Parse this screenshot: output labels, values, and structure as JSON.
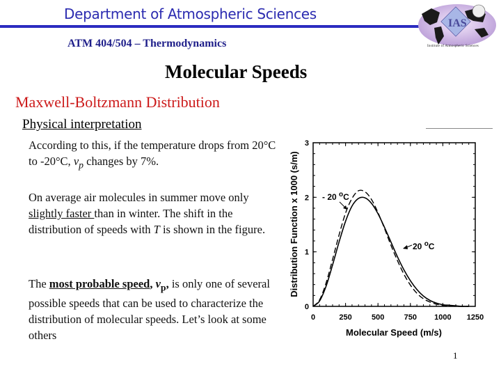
{
  "header": {
    "department": "Department of Atmospheric Sciences",
    "course": "ATM 404/504 – Thermodynamics",
    "logo": {
      "text": "IAS",
      "caption": "Institute of Atmospheric Sciences"
    }
  },
  "slide": {
    "title": "Molecular Speeds",
    "subtitle": "Maxwell-Boltzmann Distribution",
    "subheading": "Physical interpretation",
    "paragraph1": {
      "part1": "According to this, if the temperature drops from 20°C to -20°C, ",
      "var": "v",
      "sub": "p",
      "part2": " changes by 7%."
    },
    "paragraph2": {
      "part1": "On average air molecules in summer move only ",
      "underlined": "slightly faster ",
      "part2": "than in winter.  The shift in the distribution of speeds with ",
      "var": "T",
      "part3": " is shown in the figure."
    },
    "paragraph3": {
      "part1": "The ",
      "bold_underlined": "most probable speed",
      "bold_comma": ", ",
      "var": "v",
      "sub": "p",
      "bold_comma2": ",",
      "part2": " is only one of several possible speeds that can be used to characterize the distribution of molecular speeds.  Let’s look at some others"
    },
    "page_number": "1"
  },
  "chart_data": {
    "type": "line",
    "title": "",
    "xlabel": "Molecular Speed (m/s)",
    "ylabel": "Distribution Function x 1000 (s/m)",
    "xlim": [
      0,
      1250
    ],
    "ylim": [
      0,
      3
    ],
    "x_ticks": [
      "0",
      "250",
      "500",
      "750",
      "1000",
      "1250"
    ],
    "y_ticks": [
      "0",
      "1",
      "2",
      "3"
    ],
    "grid": false,
    "x": [
      0,
      50,
      100,
      150,
      200,
      250,
      300,
      350,
      400,
      450,
      500,
      550,
      600,
      650,
      700,
      750,
      800,
      850,
      900,
      950,
      1000,
      1050,
      1100,
      1150,
      1200
    ],
    "series": [
      {
        "name": "20 °C",
        "style": "solid",
        "values": [
          0.0,
          0.1,
          0.37,
          0.76,
          1.18,
          1.56,
          1.84,
          1.98,
          1.99,
          1.89,
          1.7,
          1.45,
          1.18,
          0.91,
          0.67,
          0.47,
          0.31,
          0.19,
          0.11,
          0.06,
          0.03,
          0.02,
          0.01,
          0.0,
          0.0
        ]
      },
      {
        "name": "-20 °C",
        "style": "dashed",
        "values": [
          0.0,
          0.12,
          0.43,
          0.86,
          1.31,
          1.71,
          1.98,
          2.12,
          2.1,
          1.96,
          1.72,
          1.43,
          1.12,
          0.84,
          0.59,
          0.39,
          0.24,
          0.14,
          0.08,
          0.04,
          0.02,
          0.01,
          0.0,
          0.0,
          0.0
        ]
      }
    ],
    "annotations": [
      {
        "label_prefix": "- 20 ",
        "label_sup": "o",
        "label_suffix": "C",
        "points_to": "-20 °C curve"
      },
      {
        "label_prefix": "20 ",
        "label_sup": "o",
        "label_suffix": "C",
        "points_to": "20 °C curve"
      }
    ]
  }
}
